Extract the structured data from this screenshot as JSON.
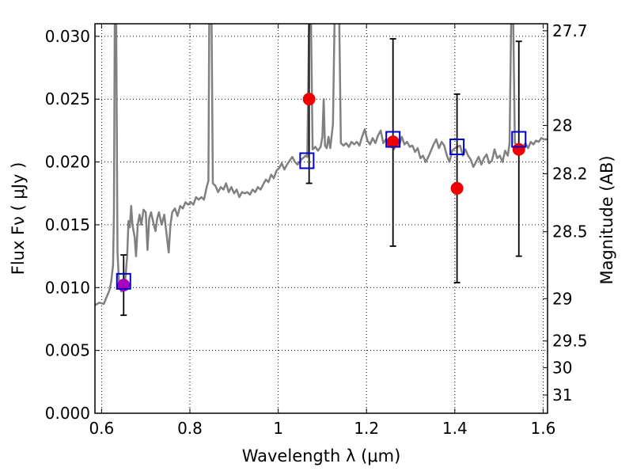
{
  "chart_data": {
    "type": "line",
    "xlabel": "Wavelength  λ (μm)",
    "ylabel": "Flux  Fν  ( μJy )",
    "y2label": "Magnitude (AB)",
    "xlim": [
      0.585,
      1.61
    ],
    "ylim": [
      0.0,
      0.031
    ],
    "grid": true,
    "x_ticks": [
      0.6,
      0.8,
      1.0,
      1.2,
      1.4,
      1.6
    ],
    "x_tick_labels": [
      "0.6",
      "0.8",
      "1",
      "1.2",
      "1.4",
      "1.6"
    ],
    "y_ticks": [
      0.0,
      0.005,
      0.01,
      0.015,
      0.02,
      0.025,
      0.03
    ],
    "y_tick_labels": [
      "0.000",
      "0.005",
      "0.010",
      "0.015",
      "0.020",
      "0.025",
      "0.030"
    ],
    "y2_ticks": [
      {
        "flux": 0.03044,
        "label": "27.7"
      },
      {
        "flux": 0.02291,
        "label": "28"
      },
      {
        "flux": 0.01906,
        "label": "28.2"
      },
      {
        "flux": 0.01445,
        "label": "28.5"
      },
      {
        "flux": 0.00912,
        "label": "29"
      },
      {
        "flux": 0.00575,
        "label": "29.5"
      },
      {
        "flux": 0.00363,
        "label": "30"
      },
      {
        "flux": 0.00145,
        "label": "31"
      }
    ],
    "spectrum": {
      "color": "#808080",
      "points": [
        [
          0.585,
          0.0086
        ],
        [
          0.595,
          0.0088
        ],
        [
          0.605,
          0.0087
        ],
        [
          0.612,
          0.0093
        ],
        [
          0.618,
          0.0098
        ],
        [
          0.622,
          0.0105
        ],
        [
          0.626,
          0.0118
        ],
        [
          0.628,
          0.016
        ],
        [
          0.63,
          0.032
        ],
        [
          0.633,
          0.032
        ],
        [
          0.636,
          0.0128
        ],
        [
          0.64,
          0.01
        ],
        [
          0.645,
          0.0097
        ],
        [
          0.65,
          0.01
        ],
        [
          0.654,
          0.0108
        ],
        [
          0.658,
          0.0125
        ],
        [
          0.661,
          0.0153
        ],
        [
          0.664,
          0.0148
        ],
        [
          0.667,
          0.0165
        ],
        [
          0.67,
          0.015
        ],
        [
          0.675,
          0.014
        ],
        [
          0.678,
          0.0125
        ],
        [
          0.682,
          0.015
        ],
        [
          0.686,
          0.0158
        ],
        [
          0.69,
          0.015
        ],
        [
          0.695,
          0.0162
        ],
        [
          0.7,
          0.016
        ],
        [
          0.704,
          0.013
        ],
        [
          0.708,
          0.0155
        ],
        [
          0.712,
          0.016
        ],
        [
          0.717,
          0.0152
        ],
        [
          0.722,
          0.0145
        ],
        [
          0.726,
          0.0155
        ],
        [
          0.73,
          0.016
        ],
        [
          0.736,
          0.015
        ],
        [
          0.742,
          0.0158
        ],
        [
          0.748,
          0.014
        ],
        [
          0.752,
          0.0128
        ],
        [
          0.756,
          0.015
        ],
        [
          0.76,
          0.016
        ],
        [
          0.766,
          0.0163
        ],
        [
          0.772,
          0.0157
        ],
        [
          0.778,
          0.0165
        ],
        [
          0.784,
          0.0163
        ],
        [
          0.79,
          0.0168
        ],
        [
          0.796,
          0.0166
        ],
        [
          0.802,
          0.0168
        ],
        [
          0.808,
          0.0166
        ],
        [
          0.814,
          0.0172
        ],
        [
          0.82,
          0.017
        ],
        [
          0.826,
          0.0172
        ],
        [
          0.832,
          0.017
        ],
        [
          0.838,
          0.018
        ],
        [
          0.842,
          0.0185
        ],
        [
          0.844,
          0.032
        ],
        [
          0.849,
          0.032
        ],
        [
          0.852,
          0.0183
        ],
        [
          0.858,
          0.0181
        ],
        [
          0.864,
          0.0176
        ],
        [
          0.87,
          0.018
        ],
        [
          0.876,
          0.0178
        ],
        [
          0.882,
          0.0183
        ],
        [
          0.888,
          0.0176
        ],
        [
          0.894,
          0.018
        ],
        [
          0.9,
          0.0175
        ],
        [
          0.906,
          0.0178
        ],
        [
          0.912,
          0.0172
        ],
        [
          0.918,
          0.0176
        ],
        [
          0.924,
          0.0175
        ],
        [
          0.93,
          0.0176
        ],
        [
          0.936,
          0.0174
        ],
        [
          0.942,
          0.0178
        ],
        [
          0.948,
          0.0176
        ],
        [
          0.954,
          0.018
        ],
        [
          0.96,
          0.0178
        ],
        [
          0.966,
          0.0182
        ],
        [
          0.972,
          0.0186
        ],
        [
          0.978,
          0.0184
        ],
        [
          0.984,
          0.019
        ],
        [
          0.99,
          0.0187
        ],
        [
          0.996,
          0.0193
        ],
        [
          1.002,
          0.0195
        ],
        [
          1.008,
          0.0199
        ],
        [
          1.014,
          0.0194
        ],
        [
          1.02,
          0.0198
        ],
        [
          1.026,
          0.0201
        ],
        [
          1.032,
          0.0204
        ],
        [
          1.038,
          0.02
        ],
        [
          1.044,
          0.0198
        ],
        [
          1.05,
          0.0201
        ],
        [
          1.056,
          0.0203
        ],
        [
          1.062,
          0.0205
        ],
        [
          1.066,
          0.0204
        ],
        [
          1.07,
          0.032
        ],
        [
          1.074,
          0.032
        ],
        [
          1.078,
          0.021
        ],
        [
          1.084,
          0.0212
        ],
        [
          1.09,
          0.0209
        ],
        [
          1.096,
          0.0212
        ],
        [
          1.1,
          0.022
        ],
        [
          1.103,
          0.025
        ],
        [
          1.106,
          0.0213
        ],
        [
          1.11,
          0.0211
        ],
        [
          1.114,
          0.022
        ],
        [
          1.118,
          0.0211
        ],
        [
          1.124,
          0.023
        ],
        [
          1.128,
          0.032
        ],
        [
          1.138,
          0.032
        ],
        [
          1.142,
          0.0215
        ],
        [
          1.148,
          0.0213
        ],
        [
          1.154,
          0.0215
        ],
        [
          1.16,
          0.0212
        ],
        [
          1.166,
          0.0216
        ],
        [
          1.172,
          0.0214
        ],
        [
          1.178,
          0.0216
        ],
        [
          1.184,
          0.0213
        ],
        [
          1.19,
          0.022
        ],
        [
          1.196,
          0.0226
        ],
        [
          1.202,
          0.0217
        ],
        [
          1.208,
          0.0214
        ],
        [
          1.214,
          0.0219
        ],
        [
          1.22,
          0.0215
        ],
        [
          1.226,
          0.0221
        ],
        [
          1.232,
          0.0225
        ],
        [
          1.238,
          0.0215
        ],
        [
          1.244,
          0.0218
        ],
        [
          1.25,
          0.0212
        ],
        [
          1.256,
          0.0214
        ],
        [
          1.262,
          0.021
        ],
        [
          1.268,
          0.0215
        ],
        [
          1.274,
          0.0213
        ],
        [
          1.28,
          0.022
        ],
        [
          1.286,
          0.0214
        ],
        [
          1.292,
          0.0216
        ],
        [
          1.298,
          0.0212
        ],
        [
          1.304,
          0.0213
        ],
        [
          1.31,
          0.0208
        ],
        [
          1.316,
          0.0211
        ],
        [
          1.322,
          0.0203
        ],
        [
          1.328,
          0.0205
        ],
        [
          1.334,
          0.02
        ],
        [
          1.34,
          0.0204
        ],
        [
          1.346,
          0.0209
        ],
        [
          1.352,
          0.0214
        ],
        [
          1.358,
          0.0218
        ],
        [
          1.364,
          0.0211
        ],
        [
          1.37,
          0.0216
        ],
        [
          1.376,
          0.0213
        ],
        [
          1.382,
          0.0205
        ],
        [
          1.388,
          0.02
        ],
        [
          1.394,
          0.0209
        ],
        [
          1.4,
          0.0211
        ],
        [
          1.406,
          0.0212
        ],
        [
          1.412,
          0.0213
        ],
        [
          1.418,
          0.0205
        ],
        [
          1.424,
          0.021
        ],
        [
          1.43,
          0.0205
        ],
        [
          1.436,
          0.0202
        ],
        [
          1.442,
          0.0196
        ],
        [
          1.448,
          0.02
        ],
        [
          1.454,
          0.0204
        ],
        [
          1.46,
          0.0198
        ],
        [
          1.466,
          0.0203
        ],
        [
          1.472,
          0.0206
        ],
        [
          1.478,
          0.0199
        ],
        [
          1.484,
          0.0201
        ],
        [
          1.49,
          0.021
        ],
        [
          1.496,
          0.0203
        ],
        [
          1.502,
          0.0205
        ],
        [
          1.508,
          0.02
        ],
        [
          1.514,
          0.0209
        ],
        [
          1.52,
          0.0205
        ],
        [
          1.524,
          0.0215
        ],
        [
          1.528,
          0.032
        ],
        [
          1.532,
          0.032
        ],
        [
          1.536,
          0.0215
        ],
        [
          1.542,
          0.0213
        ],
        [
          1.548,
          0.021
        ],
        [
          1.554,
          0.0212
        ],
        [
          1.56,
          0.0215
        ],
        [
          1.566,
          0.0211
        ],
        [
          1.572,
          0.0216
        ],
        [
          1.578,
          0.0214
        ],
        [
          1.584,
          0.0217
        ],
        [
          1.59,
          0.0216
        ],
        [
          1.596,
          0.0219
        ],
        [
          1.602,
          0.0218
        ],
        [
          1.61,
          0.0218
        ]
      ]
    },
    "model_points": {
      "marker": "open-square",
      "color": "#0000cc",
      "points": [
        {
          "x": 0.65,
          "y": 0.0105
        },
        {
          "x": 1.065,
          "y": 0.0201
        },
        {
          "x": 1.26,
          "y": 0.0218
        },
        {
          "x": 1.405,
          "y": 0.0212
        },
        {
          "x": 1.545,
          "y": 0.0218
        }
      ]
    },
    "observed_points": {
      "marker": "filled-circle",
      "points": [
        {
          "x": 0.65,
          "y": 0.0102,
          "err_low": 0.0078,
          "err_high": 0.0126,
          "color": "#aa00bb"
        },
        {
          "x": 1.07,
          "y": 0.025,
          "err_low": 0.0183,
          "err_high": 0.032,
          "color": "#ee0000"
        },
        {
          "x": 1.26,
          "y": 0.0216,
          "err_low": 0.0133,
          "err_high": 0.0298,
          "color": "#ee0000"
        },
        {
          "x": 1.405,
          "y": 0.0179,
          "err_low": 0.0104,
          "err_high": 0.0254,
          "color": "#ee0000"
        },
        {
          "x": 1.545,
          "y": 0.021,
          "err_low": 0.0125,
          "err_high": 0.0296,
          "color": "#ee0000"
        }
      ]
    }
  }
}
